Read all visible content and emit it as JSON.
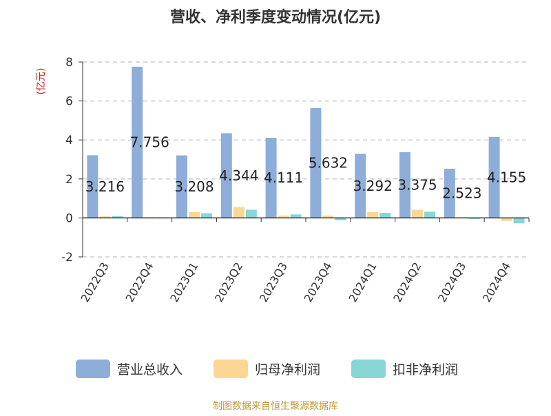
{
  "chart_data": {
    "type": "bar",
    "title": "营收、净利季度变动情况(亿元)",
    "ylabel": "(亿元)",
    "xlabel": "",
    "categories": [
      "2022Q3",
      "2022Q4",
      "2023Q1",
      "2023Q2",
      "2023Q3",
      "2023Q4",
      "2024Q1",
      "2024Q2",
      "2024Q3",
      "2024Q4"
    ],
    "ylim": [
      -2,
      8
    ],
    "yticks": [
      8,
      6,
      4,
      2,
      0,
      -2
    ],
    "series": [
      {
        "name": "营业总收入",
        "color": "#8eadd9",
        "values": [
          3.216,
          7.756,
          3.208,
          4.344,
          4.111,
          5.632,
          3.292,
          3.375,
          2.523,
          4.155
        ],
        "data_labels": [
          "3.216",
          "7.756",
          "3.208",
          "4.344",
          "4.111",
          "5.632",
          "3.292",
          "3.375",
          "2.523",
          "4.155"
        ]
      },
      {
        "name": "归母净利润",
        "color": "#fdd694",
        "values": [
          0.08,
          0.04,
          0.3,
          0.55,
          0.12,
          0.12,
          0.3,
          0.42,
          0.04,
          -0.15
        ]
      },
      {
        "name": "扣非净利润",
        "color": "#88d6d6",
        "values": [
          0.1,
          0.03,
          0.24,
          0.42,
          0.18,
          -0.12,
          0.26,
          0.32,
          -0.04,
          -0.28
        ]
      }
    ],
    "grid": true,
    "legend_position": "bottom"
  },
  "source": "制图数据来自恒生聚源数据库"
}
